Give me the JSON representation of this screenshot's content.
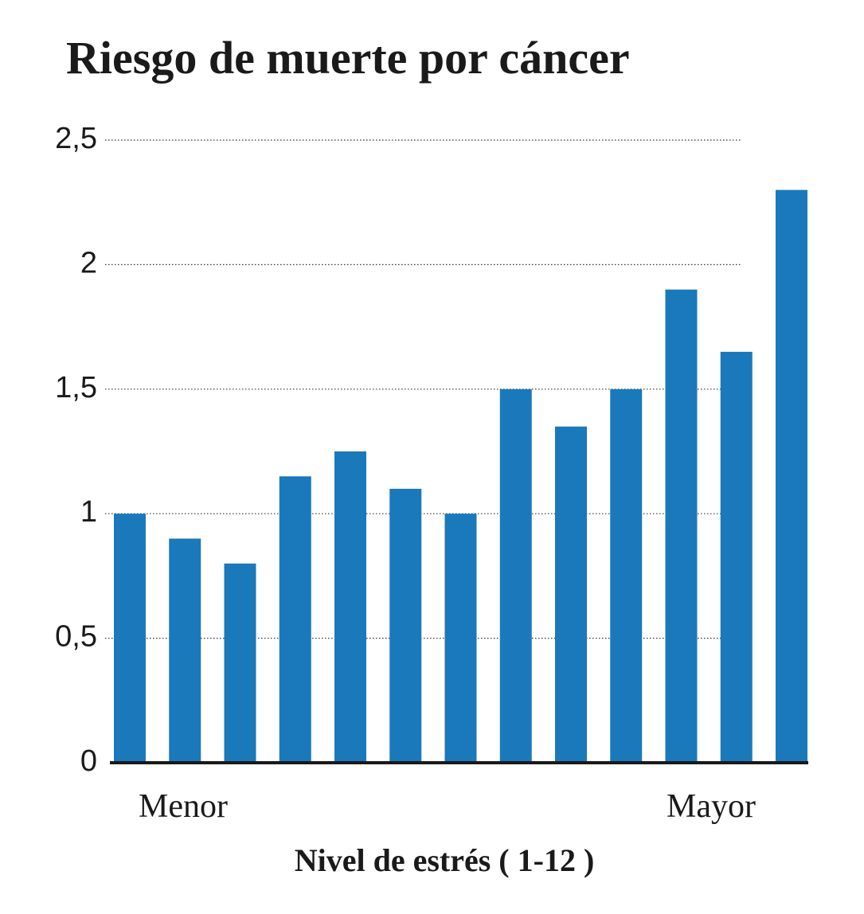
{
  "chart_data": {
    "type": "bar",
    "title": "Riesgo de muerte por cáncer",
    "x_label": "Nivel de estrés ( 1-12 )",
    "annotations": [
      "Menor",
      "Mayor"
    ],
    "categories": [
      null,
      null,
      null,
      null,
      null,
      null,
      null,
      null,
      null,
      null,
      null,
      null,
      null
    ],
    "values": [
      1,
      0.9,
      0.8,
      1.15,
      1.25,
      1.1,
      1,
      1.5,
      1.35,
      1.5,
      1.9,
      1.65,
      2.3
    ],
    "color": "#1a79bb",
    "ylim": [
      0,
      2.5
    ],
    "yticks": [
      0,
      {
        "value": 0.5,
        "label": "0,5"
      },
      1,
      {
        "value": 1.5,
        "label": "1,5"
      },
      2,
      {
        "value": 2.5,
        "label": "2,5"
      }
    ],
    "grid": true
  }
}
